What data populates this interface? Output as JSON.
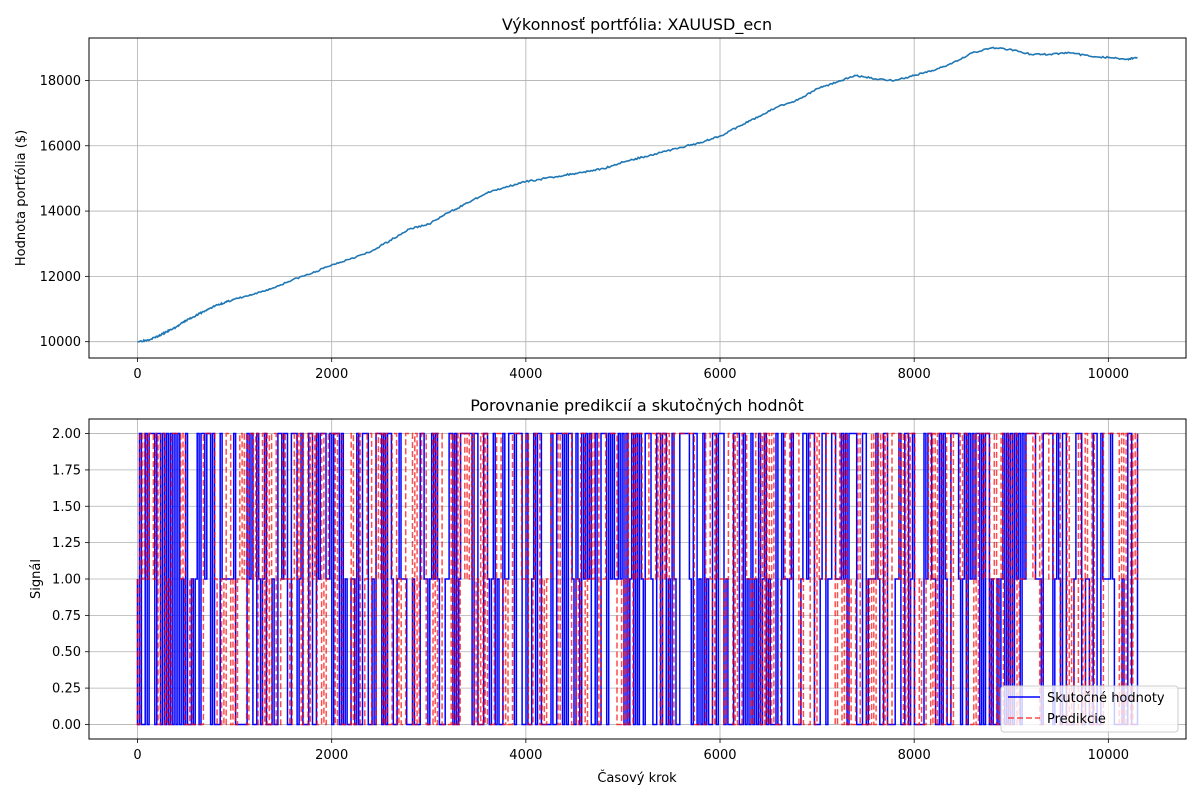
{
  "chart_data": [
    {
      "type": "line",
      "title": "Výkonnosť portfólia: XAUUSD_ecn",
      "xlabel": "",
      "ylabel": "Hodnota portfólia ($)",
      "xlim": [
        -500,
        10800
      ],
      "ylim": [
        9500,
        19300
      ],
      "xticks": [
        0,
        2000,
        4000,
        6000,
        8000,
        10000
      ],
      "yticks": [
        10000,
        12000,
        14000,
        16000,
        18000
      ],
      "xtick_labels": [
        "0",
        "2000",
        "4000",
        "6000",
        "8000",
        "10000"
      ],
      "ytick_labels": [
        "10000",
        "12000",
        "14000",
        "16000",
        "18000"
      ],
      "grid": true,
      "color": "#1f77b4",
      "x": [
        0,
        100,
        200,
        300,
        400,
        500,
        600,
        700,
        800,
        900,
        1000,
        1200,
        1400,
        1600,
        1800,
        2000,
        2200,
        2400,
        2600,
        2800,
        3000,
        3200,
        3400,
        3600,
        3800,
        4000,
        4200,
        4400,
        4600,
        4800,
        5000,
        5200,
        5400,
        5600,
        5800,
        6000,
        6200,
        6400,
        6600,
        6800,
        7000,
        7200,
        7400,
        7600,
        7800,
        8000,
        8200,
        8400,
        8600,
        8800,
        9000,
        9200,
        9400,
        9600,
        9800,
        10000,
        10200,
        10300
      ],
      "values": [
        10000,
        10050,
        10150,
        10300,
        10450,
        10650,
        10800,
        10950,
        11100,
        11200,
        11300,
        11450,
        11650,
        11900,
        12100,
        12350,
        12550,
        12750,
        13100,
        13450,
        13600,
        13950,
        14250,
        14550,
        14750,
        14900,
        15000,
        15100,
        15200,
        15300,
        15500,
        15650,
        15800,
        15950,
        16100,
        16300,
        16600,
        16900,
        17200,
        17400,
        17750,
        17950,
        18150,
        18050,
        18000,
        18150,
        18300,
        18550,
        18850,
        19000,
        18950,
        18800,
        18800,
        18850,
        18750,
        18700,
        18650,
        18700
      ]
    },
    {
      "type": "line",
      "title": "Porovnanie predikcií a skutočných hodnôt",
      "xlabel": "Časový krok",
      "ylabel": "Signál",
      "xlim": [
        -500,
        10800
      ],
      "ylim": [
        -0.1,
        2.1
      ],
      "xticks": [
        0,
        2000,
        4000,
        6000,
        8000,
        10000
      ],
      "yticks": [
        0.0,
        0.25,
        0.5,
        0.75,
        1.0,
        1.25,
        1.5,
        1.75,
        2.0
      ],
      "xtick_labels": [
        "0",
        "2000",
        "4000",
        "6000",
        "8000",
        "10000"
      ],
      "ytick_labels": [
        "0.00",
        "0.25",
        "0.50",
        "0.75",
        "1.00",
        "1.25",
        "1.50",
        "1.75",
        "2.00"
      ],
      "grid": true,
      "legend_position": "bottom-right",
      "x_range": [
        0,
        10300
      ],
      "value_levels": [
        0,
        1,
        2
      ],
      "series": [
        {
          "name": "Skutočné hodnoty",
          "color": "#0000ff",
          "style": "solid",
          "segments": 520,
          "seed": 7
        },
        {
          "name": "Predikcie",
          "color": "#ff0000",
          "style": "dashed",
          "opacity": 0.7,
          "segments": 440,
          "seed": 19
        }
      ]
    }
  ]
}
